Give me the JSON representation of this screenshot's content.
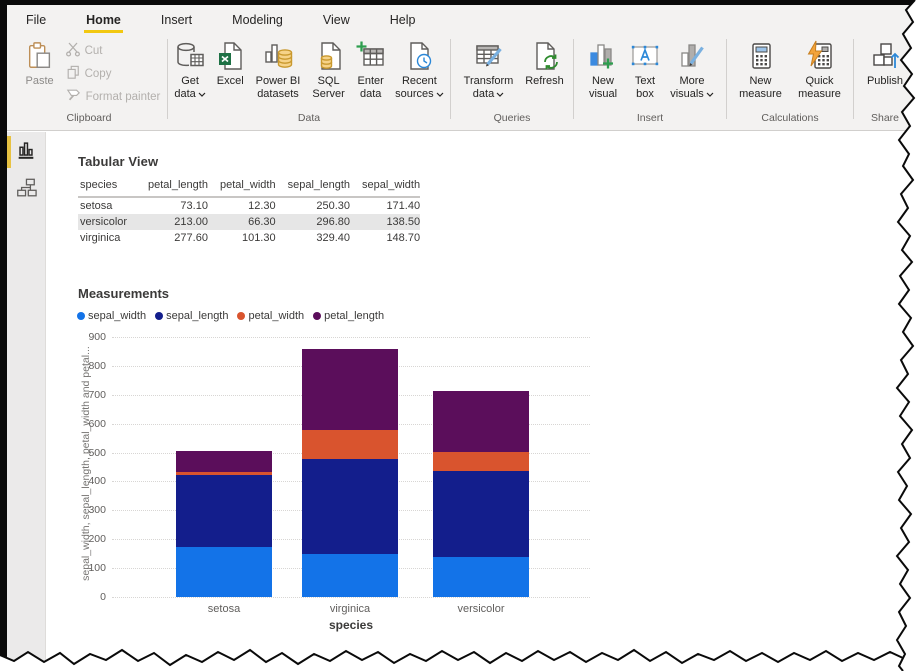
{
  "tabs": [
    "File",
    "Home",
    "Insert",
    "Modeling",
    "View",
    "Help"
  ],
  "active_tab": "Home",
  "ribbon": {
    "clipboard": {
      "label": "Clipboard",
      "paste": "Paste",
      "cut": "Cut",
      "copy": "Copy",
      "format_painter": "Format painter"
    },
    "data": {
      "label": "Data",
      "get_data": "Get data",
      "excel": "Excel",
      "powerbi_datasets": "Power BI datasets",
      "sql_server": "SQL Server",
      "enter_data": "Enter data",
      "recent_sources": "Recent sources"
    },
    "queries": {
      "label": "Queries",
      "transform_data": "Transform data",
      "refresh": "Refresh"
    },
    "insert": {
      "label": "Insert",
      "new_visual": "New visual",
      "text_box": "Text box",
      "more_visuals": "More visuals"
    },
    "calculations": {
      "label": "Calculations",
      "new_measure": "New measure",
      "quick_measure": "Quick measure"
    },
    "share": {
      "label": "Share",
      "publish": "Publish"
    }
  },
  "sidebar": {
    "active_view": "report",
    "views": [
      "report-view",
      "model-view"
    ]
  },
  "table": {
    "title": "Tabular View",
    "columns": [
      "species",
      "petal_length",
      "petal_width",
      "sepal_length",
      "sepal_width"
    ],
    "rows": [
      {
        "species": "setosa",
        "values": [
          "73.10",
          "12.30",
          "250.30",
          "171.40"
        ],
        "highlighted": false
      },
      {
        "species": "versicolor",
        "values": [
          "213.00",
          "66.30",
          "296.80",
          "138.50"
        ],
        "highlighted": true
      },
      {
        "species": "virginica",
        "values": [
          "277.60",
          "101.30",
          "329.40",
          "148.70"
        ],
        "highlighted": false
      }
    ]
  },
  "chart_data": {
    "type": "bar",
    "stacked": true,
    "title": "Measurements",
    "categories": [
      "setosa",
      "virginica",
      "versicolor"
    ],
    "series": [
      {
        "name": "sepal_width",
        "color": "#1373E8",
        "values": [
          171.4,
          148.7,
          138.5
        ]
      },
      {
        "name": "sepal_length",
        "color": "#131E8C",
        "values": [
          250.3,
          329.4,
          296.8
        ]
      },
      {
        "name": "petal_width",
        "color": "#D9542E",
        "values": [
          12.3,
          101.3,
          66.3
        ]
      },
      {
        "name": "petal_length",
        "color": "#5B0E5B",
        "values": [
          73.1,
          277.6,
          213.0
        ]
      }
    ],
    "totals": [
      507.1,
      857.0,
      714.6
    ],
    "xlabel": "species",
    "ylabel": "sepal_width, sepal_length, petal_width and petal...",
    "ylim": [
      0,
      900
    ],
    "ytick_step": 100,
    "legend_position": "top",
    "grid": "dotted-horizontal"
  },
  "colors": {
    "accent_yellow": "#f2c811",
    "ribbon_bg": "#f3f2f1",
    "row_highlight": "#e6e6e6"
  },
  "icons": {
    "used": [
      "paste-icon",
      "cut-icon",
      "copy-icon",
      "format-painter-icon",
      "get-data-icon",
      "excel-icon",
      "powerbi-datasets-icon",
      "sql-server-icon",
      "enter-data-icon",
      "recent-sources-icon",
      "transform-data-icon",
      "refresh-icon",
      "new-visual-icon",
      "text-box-icon",
      "more-visuals-icon",
      "new-measure-icon",
      "quick-measure-icon",
      "publish-icon",
      "report-view-icon",
      "model-view-icon",
      "chevron-down-icon"
    ]
  }
}
